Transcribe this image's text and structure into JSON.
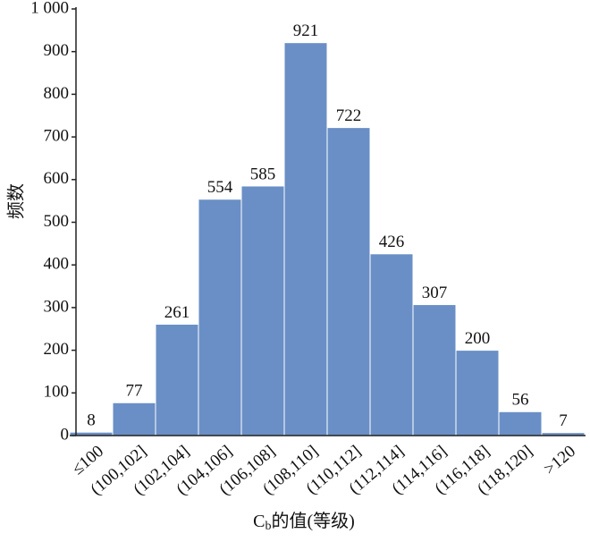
{
  "chart_data": {
    "type": "bar",
    "categories": [
      "≤100",
      "(100,102]",
      "(102,104]",
      "(104,106]",
      "(106,108]",
      "(108,110]",
      "(110,112]",
      "(112,114]",
      "(114,116]",
      "(116,118]",
      "(118,120]",
      ">120"
    ],
    "values": [
      8,
      77,
      261,
      554,
      585,
      921,
      722,
      426,
      307,
      200,
      56,
      7
    ],
    "color": "#6a8fc6",
    "x_label": [
      "C",
      "b",
      "的值(等级)"
    ],
    "y_label": "频数",
    "ylim": [
      0,
      1000
    ],
    "yticks": [
      0,
      100,
      200,
      300,
      400,
      500,
      600,
      700,
      800,
      900,
      {
        "value": 1000,
        "label": "1 000"
      }
    ]
  }
}
